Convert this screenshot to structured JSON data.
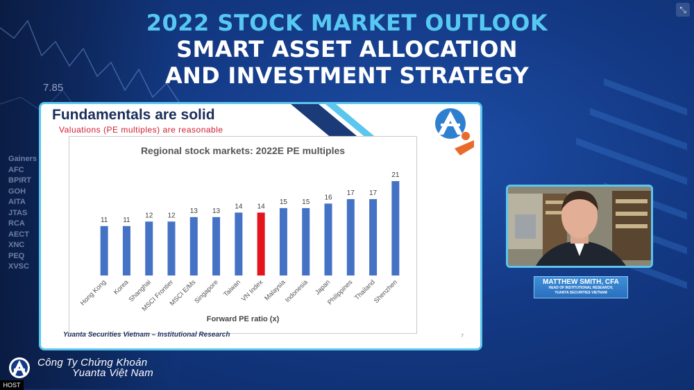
{
  "title": {
    "line1": "2022 STOCK MARKET OUTLOOK",
    "line2": "SMART ASSET ALLOCATION",
    "line3": "AND INVESTMENT STRATEGY"
  },
  "background": {
    "ticker_value": "7.85",
    "gainers_header": "Gainers",
    "gainers": [
      "AFC",
      "BPIRT",
      "GOH",
      "AITA",
      "JTAS",
      "RCA",
      "AECT",
      "XNC",
      "PEQ",
      "XVSC"
    ]
  },
  "slide": {
    "title": "Fundamentals are solid",
    "subtitle": "Valuations (PE multiples) are reasonable",
    "footer": "Yuanta Securities Vietnam – Institutional Research",
    "page_number": "7"
  },
  "chart_data": {
    "type": "bar",
    "title": "Regional stock markets: 2022E PE multiples",
    "xlabel": "Forward PE ratio (x)",
    "ylabel": "",
    "categories": [
      "Hong Kong",
      "Korea",
      "Shanghai",
      "MSCI Frontier",
      "MSCI E/Ms",
      "Singapore",
      "Taiwan",
      "VN Index",
      "Malaysia",
      "Indonesia",
      "Japan",
      "Philippines",
      "Thailand",
      "Shenzhen"
    ],
    "values": [
      11,
      11,
      12,
      12,
      13,
      13,
      14,
      14,
      15,
      15,
      16,
      17,
      17,
      21
    ],
    "highlight_index": 7,
    "colors": {
      "bar": "#4472c4",
      "highlight": "#e3141c",
      "label": "#3b3b3b"
    },
    "ylim": [
      0,
      21
    ],
    "grid": false,
    "legend": "none"
  },
  "speaker": {
    "name": "MATTHEW SMITH, CFA",
    "role": "HEAD OF INSTITUTIONAL RESEARCH,",
    "org": "YUANTA SECURITIES VIETNAM"
  },
  "company": {
    "line1": "Công Ty Chứng Khoán",
    "line2": "Yuanta Việt Nam"
  },
  "host_badge": "HOST",
  "icons": {
    "expand": "collapse-arrows-icon",
    "logo": "yuanta-logo-icon"
  },
  "colors": {
    "title_accent": "#57c8f2",
    "frame_border": "#5cc6ee",
    "background": "#143a86"
  }
}
